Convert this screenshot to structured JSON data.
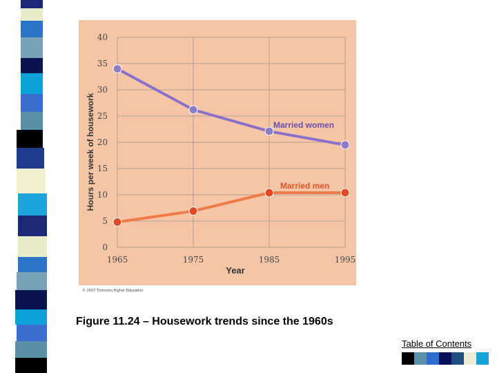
{
  "colors": {
    "panel_bg": "#f5c5a6",
    "grid": "#b5a090",
    "women_line": "#8a70c8",
    "women_marker": "#8e7cc6",
    "men_line": "#f07a48",
    "men_marker": "#e04a25",
    "axis_text": "#444444",
    "label_women": "#6a4ea8",
    "label_men": "#e2532a",
    "strip": [
      "#1b2a78",
      "#e9ecc8",
      "#2b74c9",
      "#7aa2b6",
      "#0a1550",
      "#0ea0d8",
      "#3a6fd0",
      "#5a8fa8",
      "#000000",
      "#1e3a8a",
      "#f0f0d0",
      "#1ba3dc"
    ],
    "toc_swatches": [
      "#000000",
      "#5d91a7",
      "#2f6cd0",
      "#0a0f5a",
      "#1f4f80",
      "#e9ecd2",
      "#13a3d8"
    ]
  },
  "caption": "Figure 11.24 – Housework trends since the 1960s",
  "copyright": "© 2007 Thomson Higher Education",
  "toc_link": "Table of Contents",
  "chart_data": {
    "type": "line",
    "title": "",
    "xlabel": "Year",
    "ylabel": "Hours per week of housework",
    "categories": [
      "1965",
      "1975",
      "1985",
      "1995"
    ],
    "y_ticks": [
      0,
      5,
      10,
      15,
      20,
      25,
      30,
      35,
      40
    ],
    "ylim": [
      0,
      40
    ],
    "grid": true,
    "series": [
      {
        "name": "Married women",
        "values": [
          34,
          26.2,
          22.1,
          19.5
        ]
      },
      {
        "name": "Married men",
        "values": [
          4.8,
          6.9,
          10.4,
          10.4
        ]
      }
    ]
  }
}
